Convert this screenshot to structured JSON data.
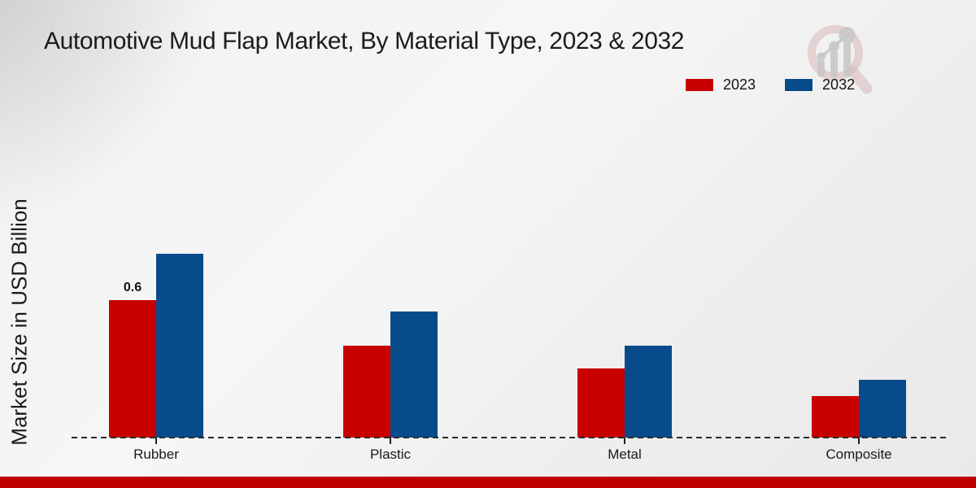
{
  "page": {
    "title": "Automotive Mud Flap Market, By Material Type, 2023 & 2032"
  },
  "chart_data": {
    "type": "bar",
    "title": "Automotive Mud Flap Market, By Material Type, 2023 & 2032",
    "xlabel": "",
    "ylabel": "Market Size in USD Billion",
    "categories": [
      "Rubber",
      "Plastic",
      "Metal",
      "Composite"
    ],
    "series": [
      {
        "name": "2023",
        "color": "#c80000",
        "values": [
          0.6,
          0.4,
          0.3,
          0.18
        ]
      },
      {
        "name": "2032",
        "color": "#084b8a",
        "values": [
          0.8,
          0.55,
          0.4,
          0.25
        ]
      }
    ],
    "ylim": [
      0,
      0.95
    ],
    "grid": false,
    "y_axis_ticks_visible": false,
    "legend_position": "top-right",
    "baseline_style": "dashed",
    "data_labels": [
      {
        "series": "2023",
        "category": "Rubber",
        "text": "0.6"
      }
    ]
  },
  "footer": {
    "color": "#c00000"
  }
}
